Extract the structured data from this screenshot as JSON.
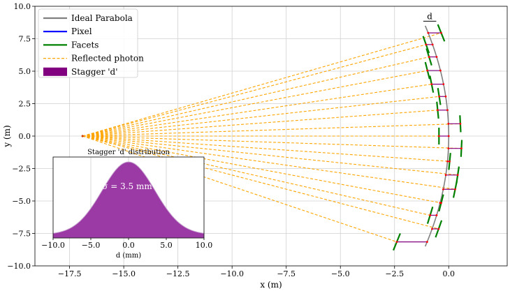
{
  "chart_data": {
    "type": "line",
    "main": {
      "xlabel": "x (m)",
      "ylabel": "y (m)",
      "xlim": [
        -19.1,
        2.7
      ],
      "ylim": [
        -10.0,
        10.0
      ],
      "xticks": [
        -17.5,
        -15.0,
        -12.5,
        -10.0,
        -7.5,
        -5.0,
        -2.5,
        0.0
      ],
      "xtick_labels": [
        "−17.5",
        "−15.0",
        "−12.5",
        "−10.0",
        "−7.5",
        "−5.0",
        "−2.5",
        "0.0"
      ],
      "yticks": [
        -10.0,
        -7.5,
        -5.0,
        -2.5,
        0.0,
        2.5,
        5.0,
        7.5,
        10.0
      ],
      "ytick_labels": [
        "−10.0",
        "−7.5",
        "−5.0",
        "−2.5",
        "0.0",
        "2.5",
        "5.0",
        "7.5",
        "10.0"
      ],
      "grid": true,
      "legend": {
        "placement": "top-left",
        "entries": [
          {
            "label": "Ideal Parabola",
            "style": "line",
            "color": "#808080"
          },
          {
            "label": "Pixel",
            "style": "line",
            "color": "#0000ff"
          },
          {
            "label": "Facets",
            "style": "line",
            "color": "#008000"
          },
          {
            "label": "Reflected photon",
            "style": "dashed",
            "color": "#ffa500"
          },
          {
            "label": "Stagger 'd'",
            "style": "patch",
            "color": "#800080"
          }
        ]
      },
      "source_point": {
        "x": -16.9,
        "y": 0.0
      },
      "parabola": {
        "apex_x": 0.0,
        "apex_y": 0.0,
        "a": 0.015,
        "y_range": [
          -8.5,
          8.5
        ]
      },
      "facets": [
        {
          "y": -8.15,
          "d": -1.4
        },
        {
          "y": -7.15,
          "d": 0.3
        },
        {
          "y": -6.1,
          "d": -0.3
        },
        {
          "y": -5.15,
          "d": 0.05
        },
        {
          "y": -4.1,
          "d": 0.55
        },
        {
          "y": -3.0,
          "d": 0.55
        },
        {
          "y": -1.95,
          "d": 0.1
        },
        {
          "y": -0.95,
          "d": 0.6
        },
        {
          "y": 0.0,
          "d": -0.45
        },
        {
          "y": 0.95,
          "d": 0.55
        },
        {
          "y": 2.0,
          "d": -0.45
        },
        {
          "y": 3.05,
          "d": -0.3
        },
        {
          "y": 4.0,
          "d": -0.55
        },
        {
          "y": 5.05,
          "d": -0.6
        },
        {
          "y": 6.1,
          "d": -0.35
        },
        {
          "y": 7.05,
          "d": -0.3
        },
        {
          "y": 7.95,
          "d": 0.6
        }
      ],
      "annotations": [
        "d"
      ],
      "colors": {
        "parabola": "#808080",
        "facets": "#008000",
        "photons": "#ffa500",
        "stagger": "#800080",
        "arrow_head": "#ff0000"
      }
    },
    "inset": {
      "type": "area",
      "title": "Stagger 'd' distribution",
      "xlabel": "d (mm)",
      "xlim": [
        -10.0,
        10.0
      ],
      "xticks": [
        -10.0,
        -5.0,
        0.0,
        5.0,
        10.0
      ],
      "xtick_labels": [
        "−10.0",
        "−5.0",
        "0.0",
        "5.0",
        "10.0"
      ],
      "sigma": 3.5,
      "annotation": "σ = 3.5 mm",
      "fill_color": "#9b3aa5",
      "grid": true
    }
  }
}
